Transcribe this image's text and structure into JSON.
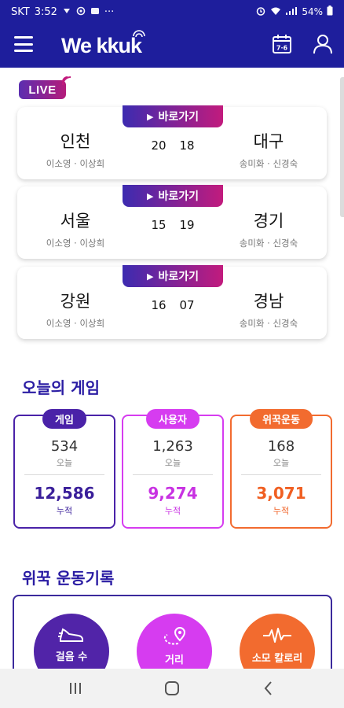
{
  "status_bar": {
    "carrier": "SKT",
    "time": "3:52",
    "left_icons": [
      "notification-icon",
      "notification-icon",
      "notification-icon"
    ],
    "more": "···",
    "battery": "54%"
  },
  "header": {
    "logo_text": "We kkuk",
    "calendar_text": "7·6"
  },
  "live_label": "LIVE",
  "goto_label": "바로가기",
  "matches": [
    {
      "home": "인천",
      "home_players": "이소영 · 이상희",
      "home_score": "20",
      "away_score": "18",
      "away": "대구",
      "away_players": "송미화 · 신경숙"
    },
    {
      "home": "서울",
      "home_players": "이소영 · 이상희",
      "home_score": "15",
      "away_score": "19",
      "away": "경기",
      "away_players": "송미화 · 신경숙"
    },
    {
      "home": "강원",
      "home_players": "이소영 · 이상희",
      "home_score": "16",
      "away_score": "07",
      "away": "경남",
      "away_players": "송미화 · 신경숙"
    }
  ],
  "today_section_title": "오늘의 게임",
  "stats": [
    {
      "tag": "게임",
      "today_value": "534",
      "today_label": "오늘",
      "total_value": "12,586",
      "total_label": "누적",
      "color": "#4a22a8"
    },
    {
      "tag": "사용자",
      "today_value": "1,263",
      "today_label": "오늘",
      "total_value": "9,274",
      "total_label": "누적",
      "color": "#d63cf0"
    },
    {
      "tag": "위꾹운동",
      "today_value": "168",
      "today_label": "오늘",
      "total_value": "3,071",
      "total_label": "누적",
      "color": "#f26b2f"
    }
  ],
  "exercise_section_title": "위꾹 운동기록",
  "exercise": [
    {
      "label": "걸음 수",
      "icon": "shoe-icon",
      "color": "#5124a8"
    },
    {
      "label": "거리",
      "icon": "route-pin-icon",
      "color": "#d63cf0"
    },
    {
      "label": "소모 칼로리",
      "icon": "heartbeat-icon",
      "color": "#f26b2f"
    }
  ],
  "colors": {
    "brand": "#1e1e9c",
    "accent_gradient_start": "#3c2bb0",
    "accent_gradient_end": "#c21b7d"
  }
}
